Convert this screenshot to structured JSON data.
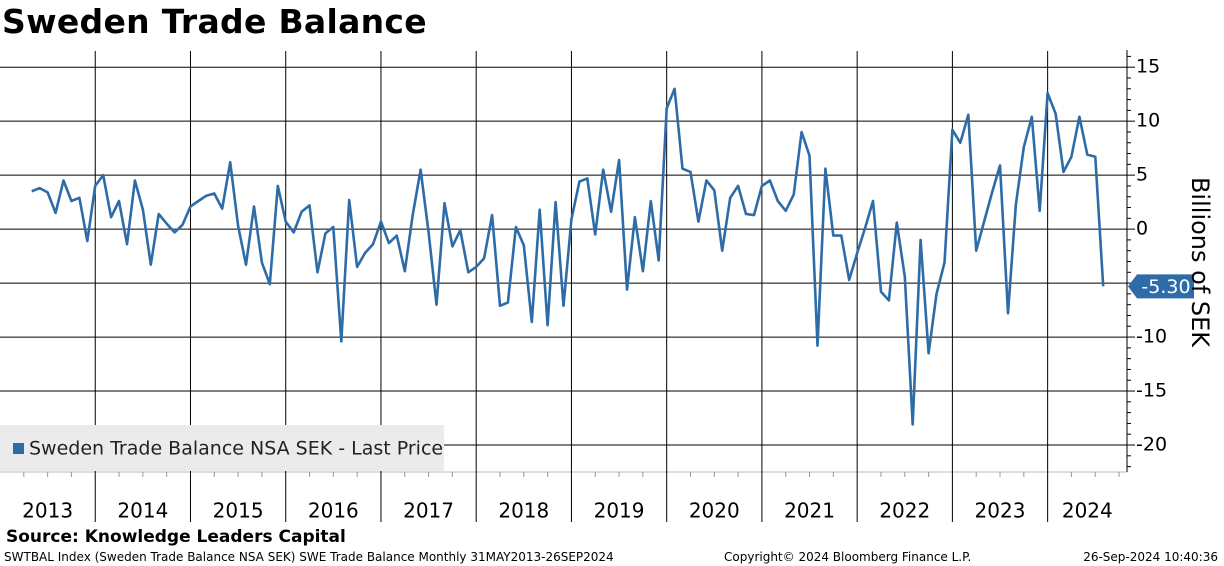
{
  "title": "Sweden Trade Balance",
  "source": "Source: Knowledge Leaders Capital",
  "footer": {
    "left": "SWTBAL Index (Sweden Trade Balance NSA SEK) SWE Trade Balance  Monthly 31MAY2013-26SEP2024",
    "center": "Copyright© 2024 Bloomberg Finance L.P.",
    "right": "26-Sep-2024 10:40:36"
  },
  "colors": {
    "line": "#2e6ca8",
    "last_badge": "#2e6ca8",
    "legend_bg": "#ebebeb"
  },
  "chart_data": {
    "type": "line",
    "title": "Sweden Trade Balance",
    "ylabel": "Billions of SEK",
    "xlabel": "",
    "x_start": "2013-05",
    "frequency": "Monthly",
    "ylim": [
      -22.5,
      16.5
    ],
    "yticks": [
      15,
      10,
      5,
      0,
      -5,
      -10,
      -15,
      -20
    ],
    "ytick_labels": [
      "15",
      "10",
      "5",
      "0",
      "-5",
      "-10",
      "-15",
      "-20"
    ],
    "xticks": [
      "2013",
      "2014",
      "2015",
      "2016",
      "2017",
      "2018",
      "2019",
      "2020",
      "2021",
      "2022",
      "2023",
      "2024"
    ],
    "grid": true,
    "legend": {
      "position": "bottom-left",
      "label": "Sweden Trade Balance NSA SEK - Last Price"
    },
    "last_value_label": "-5.30",
    "series": [
      {
        "name": "Sweden Trade Balance NSA SEK - Last Price",
        "values": [
          3.5,
          3.8,
          3.4,
          1.5,
          4.5,
          2.6,
          2.9,
          -1.1,
          4.0,
          5.0,
          1.1,
          2.6,
          -1.4,
          4.5,
          1.8,
          -3.3,
          1.4,
          0.5,
          -0.3,
          0.4,
          2.1,
          2.6,
          3.1,
          3.3,
          1.9,
          6.2,
          0.3,
          -3.3,
          2.1,
          -3.1,
          -5.1,
          4.0,
          0.7,
          -0.3,
          1.6,
          2.2,
          -4.0,
          -0.4,
          0.2,
          -10.4,
          2.7,
          -3.5,
          -2.2,
          -1.4,
          0.7,
          -1.3,
          -0.6,
          -3.9,
          1.3,
          5.5,
          -0.3,
          -7.0,
          2.4,
          -1.6,
          -0.1,
          -4.0,
          -3.5,
          -2.7,
          1.3,
          -7.1,
          -6.8,
          0.2,
          -1.5,
          -8.6,
          1.8,
          -8.9,
          2.5,
          -7.1,
          0.9,
          4.4,
          4.7,
          -0.5,
          5.5,
          1.6,
          6.4,
          -5.6,
          1.1,
          -3.9,
          2.6,
          -2.9,
          11.2,
          13.0,
          5.6,
          5.3,
          0.7,
          4.5,
          3.6,
          -2.0,
          2.9,
          4.0,
          1.4,
          1.3,
          4.0,
          4.5,
          2.6,
          1.7,
          3.2,
          9.0,
          6.8,
          -10.8,
          5.6,
          -0.6,
          -0.6,
          -4.7,
          -2.2,
          0.1,
          2.6,
          -5.8,
          -6.6,
          0.6,
          -4.4,
          -18.1,
          -1.0,
          -11.5,
          -6.0,
          -3.1,
          9.2,
          8.0,
          10.6,
          -2.0,
          0.7,
          3.4,
          5.9,
          -7.8,
          2.3,
          7.6,
          10.4,
          1.7,
          12.6,
          10.7,
          5.3,
          6.7,
          10.4,
          6.9,
          6.7,
          -5.3
        ]
      }
    ]
  }
}
